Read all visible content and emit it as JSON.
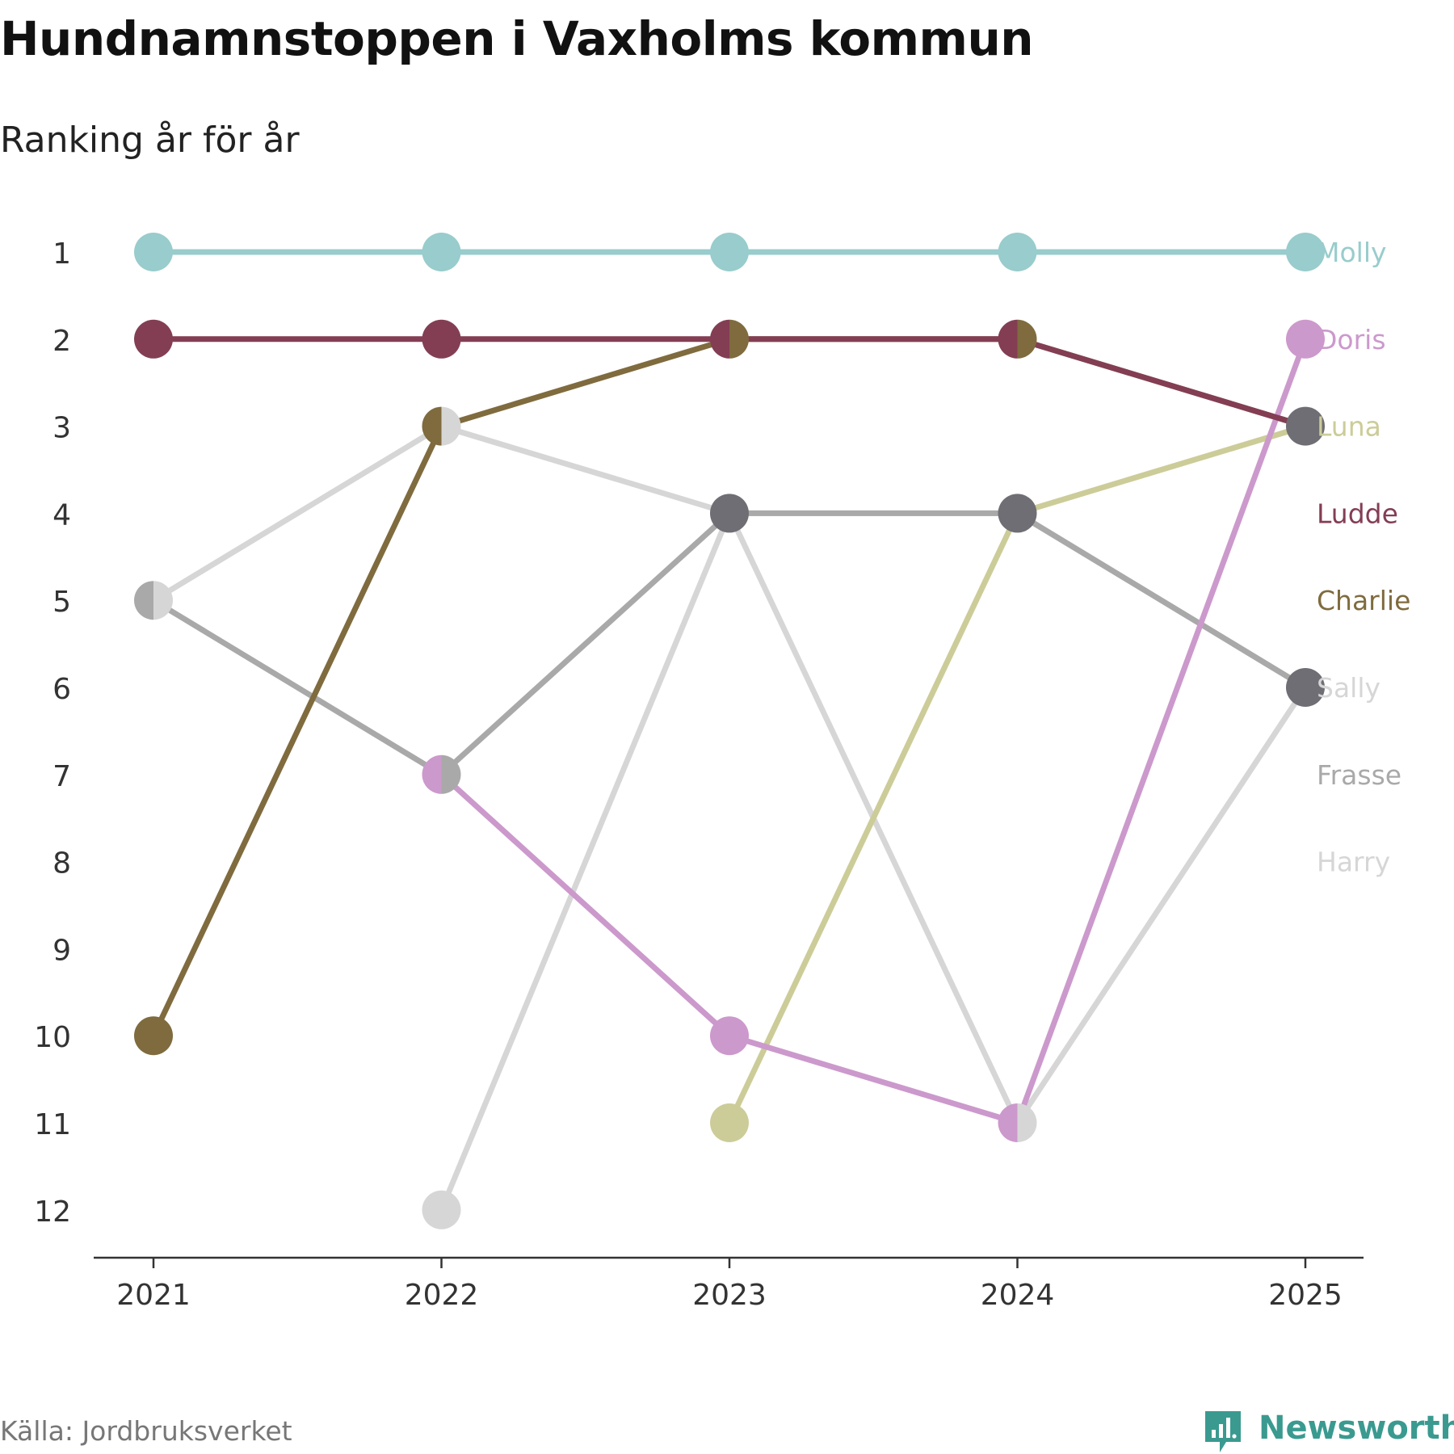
{
  "title": "Hundnamnstoppen i Vaxholms kommun",
  "subtitle": "Ranking år för år",
  "source": "Källa: Jordbruksverket",
  "brand": "Newsworthy",
  "chart_data": {
    "type": "line",
    "subtype": "bump",
    "categories": [
      "2021",
      "2022",
      "2023",
      "2024",
      "2025"
    ],
    "y_ticks": [
      "1",
      "2",
      "3",
      "4",
      "5",
      "6",
      "7",
      "8",
      "9",
      "10",
      "11",
      "12"
    ],
    "ylim": [
      1,
      12
    ],
    "y_reversed": true,
    "grid": false,
    "legend": "right",
    "series": [
      {
        "name": "Harry",
        "color": "#d6d6d6",
        "values": [
          5,
          3,
          4,
          11,
          6
        ]
      },
      {
        "name": "Sally",
        "color": "#d6d6d6",
        "values": [
          null,
          12,
          4,
          4,
          6
        ]
      },
      {
        "name": "Frasse",
        "color": "#a9a9a9",
        "values": [
          5,
          7,
          4,
          4,
          6
        ]
      },
      {
        "name": "Charlie",
        "color": "#7f6b3e",
        "values": [
          10,
          3,
          2,
          2,
          3
        ]
      },
      {
        "name": "Luna",
        "color": "#cccc99",
        "values": [
          null,
          null,
          11,
          4,
          3
        ]
      },
      {
        "name": "Doris",
        "color": "#cc99cc",
        "values": [
          null,
          7,
          10,
          11,
          2
        ]
      },
      {
        "name": "Ludde",
        "color": "#833e54",
        "values": [
          2,
          2,
          2,
          2,
          3
        ]
      },
      {
        "name": "Molly",
        "color": "#99cccc",
        "values": [
          1,
          1,
          1,
          1,
          1
        ]
      }
    ],
    "end_labels": [
      "Molly",
      "Doris",
      "Luna",
      "Ludde",
      "Charlie",
      "Sally",
      "Frasse",
      "Harry"
    ],
    "tied_marker_color": "#6e6e74"
  }
}
